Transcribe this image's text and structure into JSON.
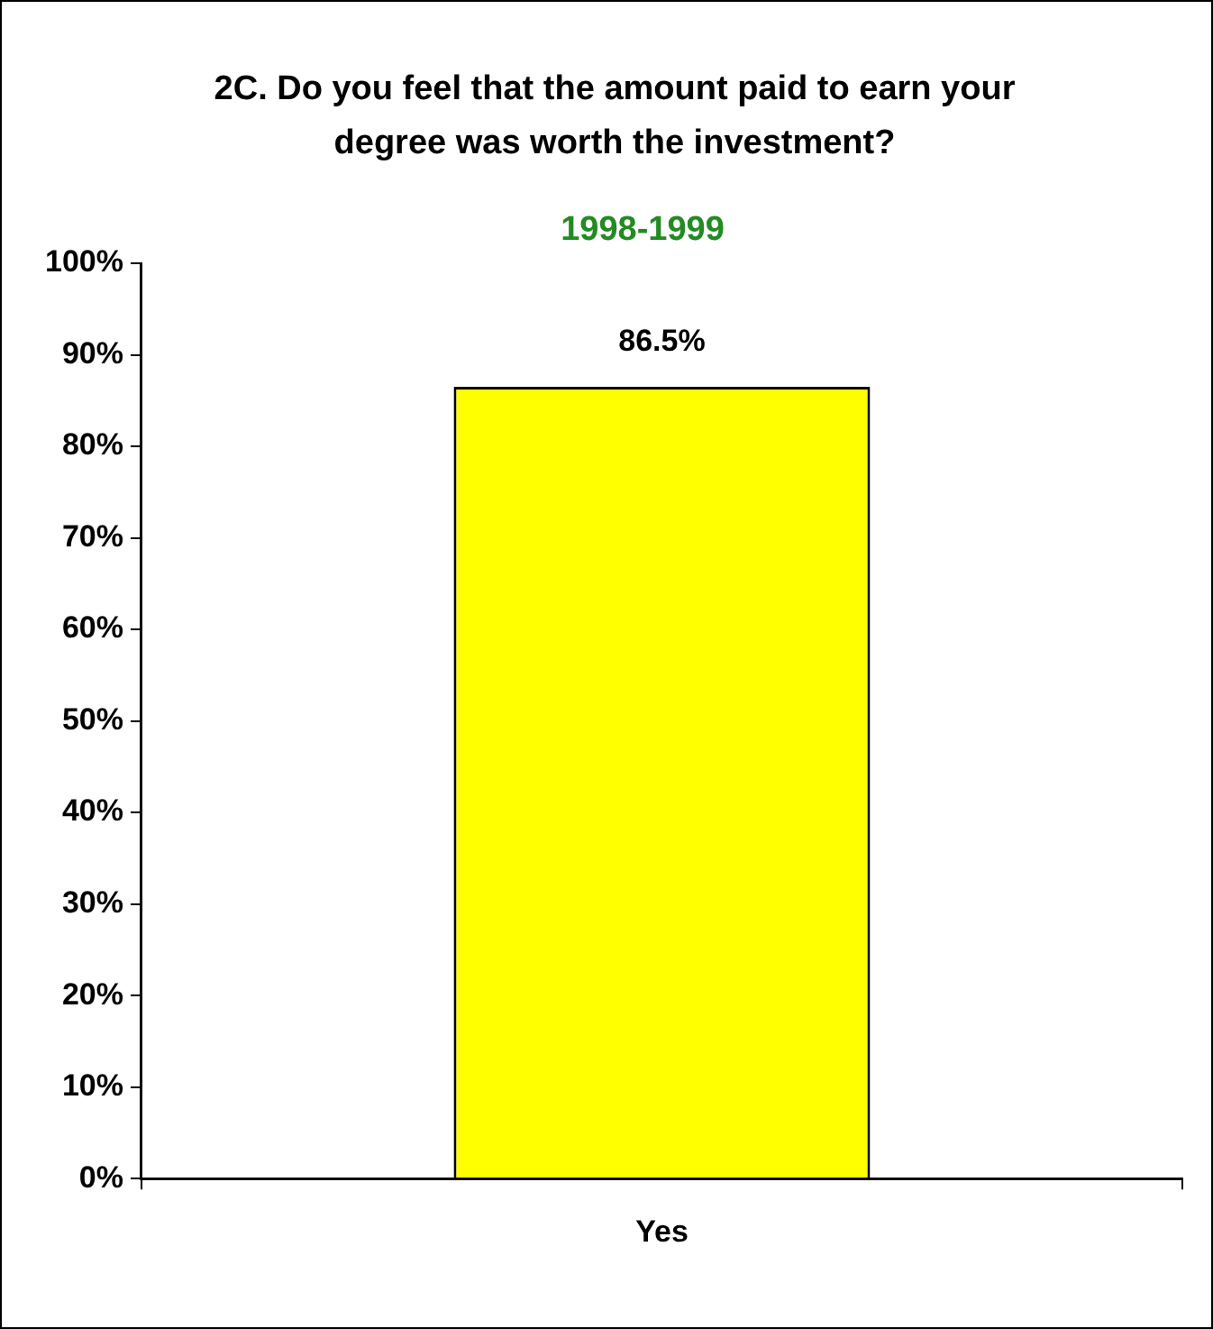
{
  "chart_data": {
    "type": "bar",
    "title": "2C. Do you feel that the amount paid to earn your degree was worth the investment?",
    "subtitle": "1998-1999",
    "categories": [
      "Yes"
    ],
    "values": [
      86.5
    ],
    "color": "#ffff00",
    "value_labels": [
      "86.5%"
    ],
    "ylim": [
      0,
      100
    ],
    "yticks": [
      {
        "value": 0,
        "label": "0%"
      },
      {
        "value": 10,
        "label": "10%"
      },
      {
        "value": 20,
        "label": "20%"
      },
      {
        "value": 30,
        "label": "30%"
      },
      {
        "value": 40,
        "label": "40%"
      },
      {
        "value": 50,
        "label": "50%"
      },
      {
        "value": 60,
        "label": "60%"
      },
      {
        "value": 70,
        "label": "70%"
      },
      {
        "value": 80,
        "label": "80%"
      },
      {
        "value": 90,
        "label": "90%"
      },
      {
        "value": 100,
        "label": "100%"
      }
    ],
    "grid": false,
    "legend": false
  }
}
